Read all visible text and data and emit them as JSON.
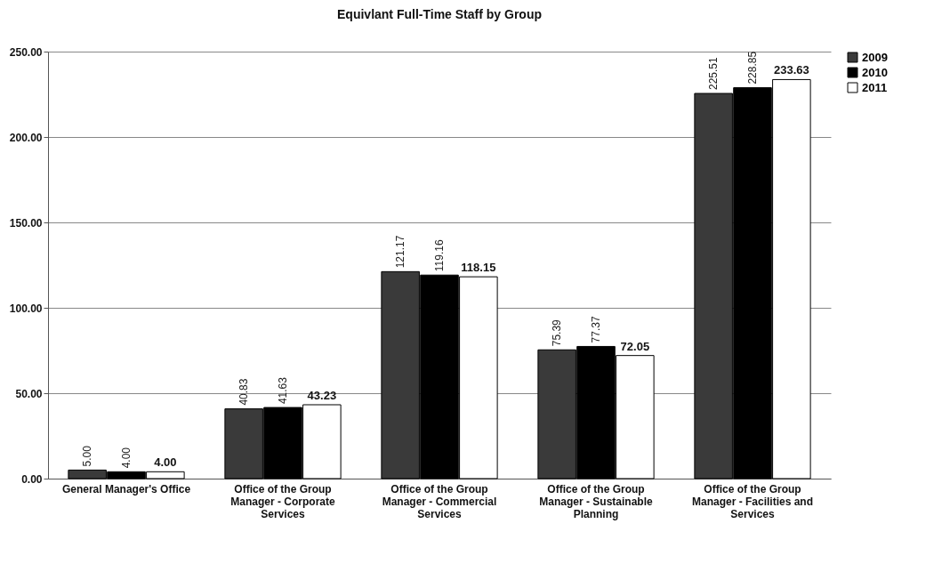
{
  "chart_data": {
    "type": "bar",
    "title": "Equivlant Full-Time Staff by Group",
    "categories": [
      "General Manager's Office",
      "Office of the Group Manager - Corporate Services",
      "Office of the Group Manager - Commercial Services",
      "Office of the Group Manager - Sustainable Planning",
      "Office of the Group Manager - Facilities and Services"
    ],
    "series": [
      {
        "name": "2009",
        "color": "#3a3a3a",
        "values": [
          5.0,
          40.83,
          121.17,
          75.39,
          225.51
        ],
        "value_labels": [
          "5.00",
          "40.83",
          "121.17",
          "75.39",
          "225.51"
        ]
      },
      {
        "name": "2010",
        "color": "#000000",
        "values": [
          4.0,
          41.63,
          119.16,
          77.37,
          228.85
        ],
        "value_labels": [
          "4.00",
          "41.63",
          "119.16",
          "77.37",
          "228.85"
        ]
      },
      {
        "name": "2011",
        "color": "#ffffff",
        "values": [
          4.0,
          43.23,
          118.15,
          72.05,
          233.63
        ],
        "value_labels": [
          "4.00",
          "43.23",
          "118.15",
          "72.05",
          "233.63"
        ]
      }
    ],
    "ylim": [
      0,
      250
    ],
    "yticks": [
      {
        "value": 0,
        "label": "0.00"
      },
      {
        "value": 50,
        "label": "50.00"
      },
      {
        "value": 100,
        "label": "100.00"
      },
      {
        "value": 150,
        "label": "150.00"
      },
      {
        "value": 200,
        "label": "200.00"
      },
      {
        "value": 250,
        "label": "250.00"
      }
    ],
    "grid": "y",
    "legend": "right"
  }
}
